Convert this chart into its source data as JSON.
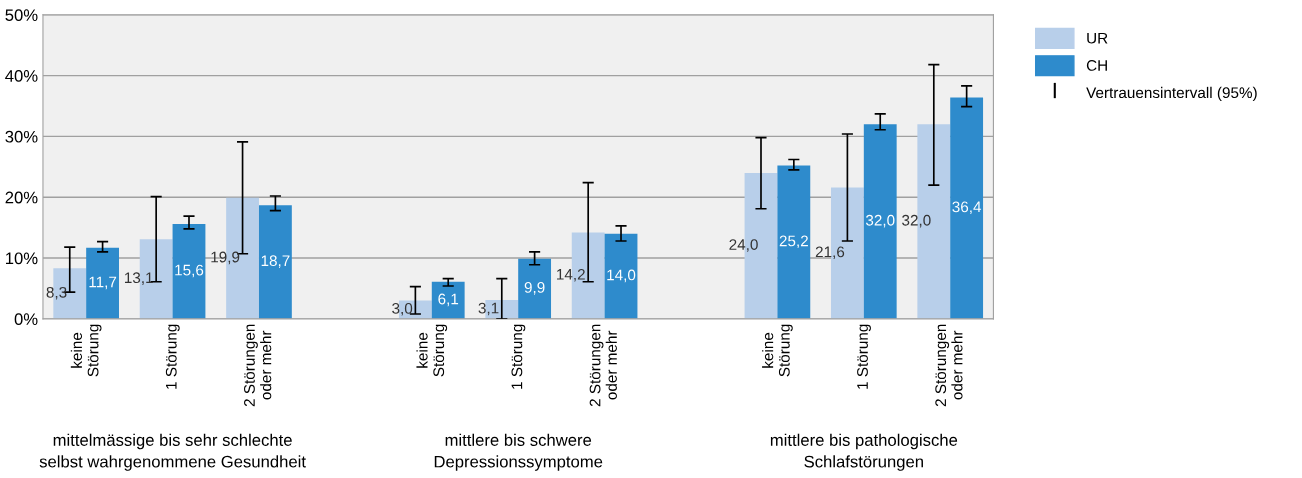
{
  "chart_data": {
    "type": "bar",
    "categories": [
      "keine\nStörung",
      "1 Störung",
      "2 Störungen\noder mehr",
      null,
      "keine\nStörung",
      "1 Störung",
      "2 Störungen\noder mehr",
      null,
      "keine\nStörung",
      "1 Störung",
      "2 Störungen\noder mehr"
    ],
    "series": [
      {
        "name": "UR",
        "color": "#b8cfea",
        "values": [
          8.3,
          13.1,
          19.9,
          null,
          3.0,
          3.1,
          14.2,
          null,
          24.0,
          21.6,
          32.0
        ],
        "value_labels": [
          "8,3",
          "13,1",
          "19,9",
          null,
          "3,0",
          "3,1",
          "14,2",
          null,
          "24,0",
          "21,6",
          "32,0"
        ],
        "errors": [
          [
            4.4,
            11.8
          ],
          [
            6.1,
            20.1
          ],
          [
            10.7,
            29.1
          ],
          null,
          [
            0.8,
            5.3
          ],
          [
            0.0,
            6.6
          ],
          [
            6.1,
            22.4
          ],
          null,
          [
            18.1,
            29.8
          ],
          [
            12.8,
            30.4
          ],
          [
            22.0,
            41.8
          ]
        ]
      },
      {
        "name": "CH",
        "color": "#2e8bcc",
        "values": [
          11.7,
          15.6,
          18.7,
          null,
          6.1,
          9.9,
          14.0,
          null,
          25.2,
          32.0,
          36.4
        ],
        "value_labels": [
          "11,7",
          "15,6",
          "18,7",
          null,
          "6,1",
          "9,9",
          "14,0",
          null,
          "25,2",
          "32,0",
          "36,4"
        ],
        "errors": [
          [
            11.0,
            12.7
          ],
          [
            14.8,
            16.9
          ],
          [
            17.8,
            20.2
          ],
          null,
          [
            5.4,
            6.6
          ],
          [
            8.9,
            11.0
          ],
          [
            12.8,
            15.3
          ],
          null,
          [
            24.5,
            26.2
          ],
          [
            31.1,
            33.7
          ],
          [
            34.9,
            38.3
          ]
        ]
      }
    ],
    "annotations": [
      "mittelmässige bis sehr schlechte\nselbst wahrgenommene Gesundheit",
      "mittlere bis schwere\nDepressionssymptome",
      "mittlere bis pathologische\nSchlafstörungen",
      "Vertrauensintervall (95%)"
    ],
    "ylim": [
      0,
      50
    ],
    "yticks": [
      {
        "value": 0,
        "label": "0%"
      },
      {
        "value": 10,
        "label": "10%"
      },
      {
        "value": 20,
        "label": "20%"
      },
      {
        "value": 30,
        "label": "30%"
      },
      {
        "value": 40,
        "label": "40%"
      },
      {
        "value": 50,
        "label": "50%"
      }
    ],
    "grid": "y",
    "legend": "top right"
  }
}
